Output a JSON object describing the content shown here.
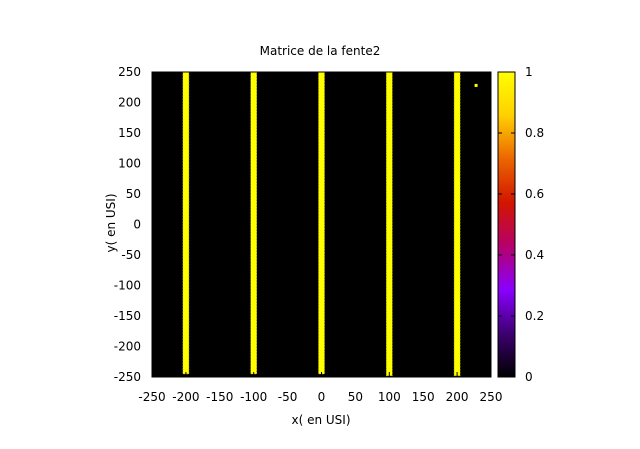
{
  "chart_data": {
    "type": "heatmap",
    "title": "Matrice de la fente2",
    "xlabel": "x( en USI)",
    "ylabel": "y( en USI)",
    "xlim": [
      -250,
      250
    ],
    "ylim": [
      -250,
      250
    ],
    "xticks": [
      -250,
      -200,
      -150,
      -100,
      -50,
      0,
      50,
      100,
      150,
      200,
      250
    ],
    "yticks": [
      -250,
      -200,
      -150,
      -100,
      -50,
      0,
      50,
      100,
      150,
      200,
      250
    ],
    "background_value": 0,
    "slits": [
      {
        "x": -200,
        "y": [
          -245,
          250
        ],
        "value": 1
      },
      {
        "x": -100,
        "y": [
          -245,
          250
        ],
        "value": 1
      },
      {
        "x": 0,
        "y": [
          -245,
          250
        ],
        "value": 1
      },
      {
        "x": 100,
        "y": [
          -248,
          250
        ],
        "value": 1
      },
      {
        "x": 200,
        "y": [
          -248,
          250
        ],
        "value": 1
      }
    ],
    "points": [
      {
        "x": 228,
        "y": 228,
        "value": 1
      }
    ],
    "colorbar": {
      "min": 0,
      "max": 1,
      "ticks": [
        0,
        0.2,
        0.4,
        0.6,
        0.8,
        1
      ],
      "colormap": [
        "#000000",
        "#3d0070",
        "#8a00ff",
        "#b6006b",
        "#d21500",
        "#eb6500",
        "#ffd000",
        "#ffff00"
      ]
    },
    "grid": false,
    "colors": {
      "background": "#000000",
      "slit": "#ffff00",
      "slit_edge": "#c8b400"
    }
  }
}
